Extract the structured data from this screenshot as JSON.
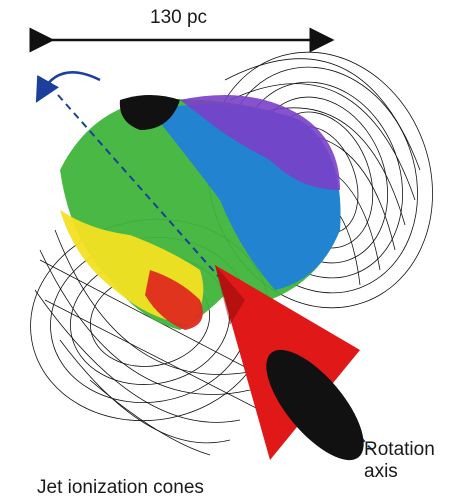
{
  "labels": {
    "scale": "130 pc",
    "rotation_axis_line1": "Rotation",
    "rotation_axis_line2": "axis",
    "jet_cones": "Jet ionization cones"
  },
  "colors": {
    "wireframe": "#111111",
    "cone": "#e01818",
    "cone_base": "#111111",
    "axis_line": "#1b3f9a",
    "rotation_arrow": "#1b3f9a",
    "map_green": "#3fb43a",
    "map_blue": "#1e7de0",
    "map_purple": "#7a3fc8",
    "map_yellow": "#f4e023",
    "map_red": "#e02a1f"
  },
  "icons": {
    "scale_bar": "double-headed-arrow",
    "rotation": "curved-arrow-icon"
  }
}
